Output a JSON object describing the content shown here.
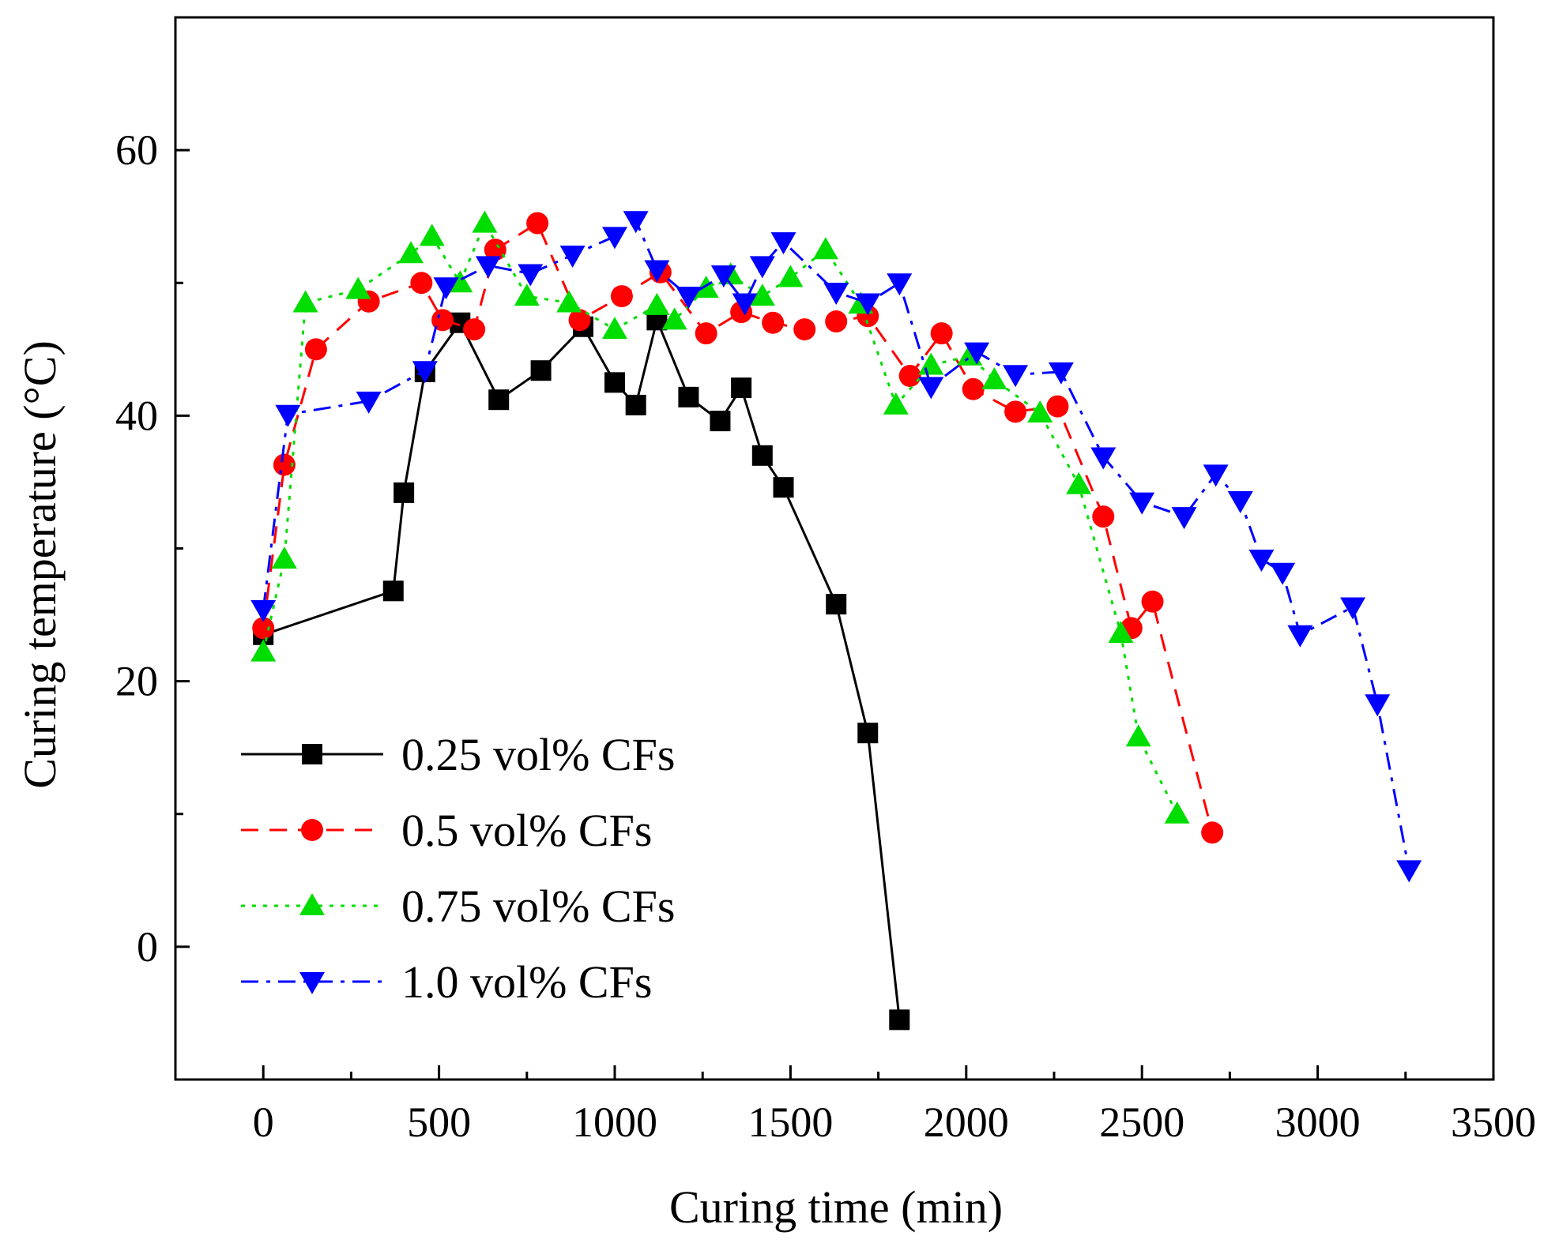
{
  "chart_data": {
    "type": "line",
    "title": "",
    "xlabel": "Curing time (min)",
    "ylabel": "Curing temperature (°C)",
    "xlim": [
      -250,
      3500
    ],
    "ylim": [
      -10,
      70
    ],
    "xticks": [
      0,
      500,
      1000,
      1500,
      2000,
      2500,
      3000,
      3500
    ],
    "yticks": [
      0,
      20,
      40,
      60
    ],
    "legend_position": "lower-left",
    "series": [
      {
        "name": "0.25 vol% CFs",
        "color": "#000000",
        "line_style": "solid",
        "marker": "square",
        "points": [
          [
            0,
            23.5
          ],
          [
            370,
            26.8
          ],
          [
            400,
            34.2
          ],
          [
            460,
            43.3
          ],
          [
            560,
            47
          ],
          [
            670,
            41.2
          ],
          [
            790,
            43.4
          ],
          [
            910,
            46.7
          ],
          [
            1000,
            42.5
          ],
          [
            1060,
            40.8
          ],
          [
            1120,
            47.2
          ],
          [
            1210,
            41.4
          ],
          [
            1300,
            39.6
          ],
          [
            1360,
            42.1
          ],
          [
            1420,
            37
          ],
          [
            1480,
            34.6
          ],
          [
            1630,
            25.8
          ],
          [
            1720,
            16.1
          ],
          [
            1810,
            -5.5
          ]
        ]
      },
      {
        "name": "0.5 vol% CFs",
        "color": "#ff0000",
        "line_style": "dashed",
        "marker": "circle",
        "points": [
          [
            0,
            24
          ],
          [
            60,
            36.3
          ],
          [
            150,
            45
          ],
          [
            300,
            48.6
          ],
          [
            450,
            50
          ],
          [
            510,
            47.2
          ],
          [
            600,
            46.5
          ],
          [
            660,
            52.5
          ],
          [
            780,
            54.5
          ],
          [
            900,
            47.2
          ],
          [
            1020,
            49
          ],
          [
            1130,
            50.8
          ],
          [
            1260,
            46.2
          ],
          [
            1360,
            47.8
          ],
          [
            1450,
            47
          ],
          [
            1540,
            46.5
          ],
          [
            1630,
            47.1
          ],
          [
            1720,
            47.5
          ],
          [
            1840,
            43
          ],
          [
            1930,
            46.2
          ],
          [
            2020,
            42
          ],
          [
            2140,
            40.3
          ],
          [
            2260,
            40.7
          ],
          [
            2390,
            32.4
          ],
          [
            2470,
            24
          ],
          [
            2530,
            26
          ],
          [
            2700,
            8.6
          ]
        ]
      },
      {
        "name": "0.75 vol% CFs",
        "color": "#00dd00",
        "line_style": "dotted",
        "marker": "triangle-up",
        "points": [
          [
            0,
            22.2
          ],
          [
            60,
            29.2
          ],
          [
            120,
            48.5
          ],
          [
            270,
            49.5
          ],
          [
            420,
            52.2
          ],
          [
            480,
            53.5
          ],
          [
            560,
            50
          ],
          [
            630,
            54.5
          ],
          [
            750,
            49
          ],
          [
            870,
            48.5
          ],
          [
            1000,
            46.5
          ],
          [
            1120,
            48.3
          ],
          [
            1170,
            47.2
          ],
          [
            1260,
            49.6
          ],
          [
            1330,
            50.6
          ],
          [
            1420,
            49
          ],
          [
            1500,
            50.4
          ],
          [
            1600,
            52.5
          ],
          [
            1700,
            48.4
          ],
          [
            1800,
            40.8
          ],
          [
            1900,
            43.8
          ],
          [
            2010,
            44.5
          ],
          [
            2080,
            42.7
          ],
          [
            2210,
            40.2
          ],
          [
            2320,
            34.8
          ],
          [
            2440,
            23.6
          ],
          [
            2490,
            15.8
          ],
          [
            2600,
            10
          ]
        ]
      },
      {
        "name": "1.0 vol% CFs",
        "color": "#0000ff",
        "line_style": "dashdot",
        "marker": "triangle-down",
        "points": [
          [
            0,
            25.4
          ],
          [
            70,
            40.1
          ],
          [
            300,
            41.1
          ],
          [
            460,
            43.4
          ],
          [
            520,
            49.7
          ],
          [
            640,
            51.3
          ],
          [
            760,
            50.7
          ],
          [
            880,
            52.1
          ],
          [
            1000,
            53.5
          ],
          [
            1060,
            54.7
          ],
          [
            1120,
            51
          ],
          [
            1210,
            49
          ],
          [
            1310,
            50.6
          ],
          [
            1370,
            48.5
          ],
          [
            1420,
            51.3
          ],
          [
            1480,
            53.1
          ],
          [
            1630,
            49.3
          ],
          [
            1720,
            48.5
          ],
          [
            1810,
            50
          ],
          [
            1900,
            42.2
          ],
          [
            2030,
            44.8
          ],
          [
            2140,
            43.1
          ],
          [
            2270,
            43.3
          ],
          [
            2390,
            36.9
          ],
          [
            2500,
            33.5
          ],
          [
            2620,
            32.4
          ],
          [
            2710,
            35.6
          ],
          [
            2780,
            33.6
          ],
          [
            2840,
            29.2
          ],
          [
            2900,
            28.2
          ],
          [
            2950,
            23.5
          ],
          [
            3100,
            25.6
          ],
          [
            3170,
            18.3
          ],
          [
            3260,
            5.8
          ]
        ]
      }
    ]
  }
}
